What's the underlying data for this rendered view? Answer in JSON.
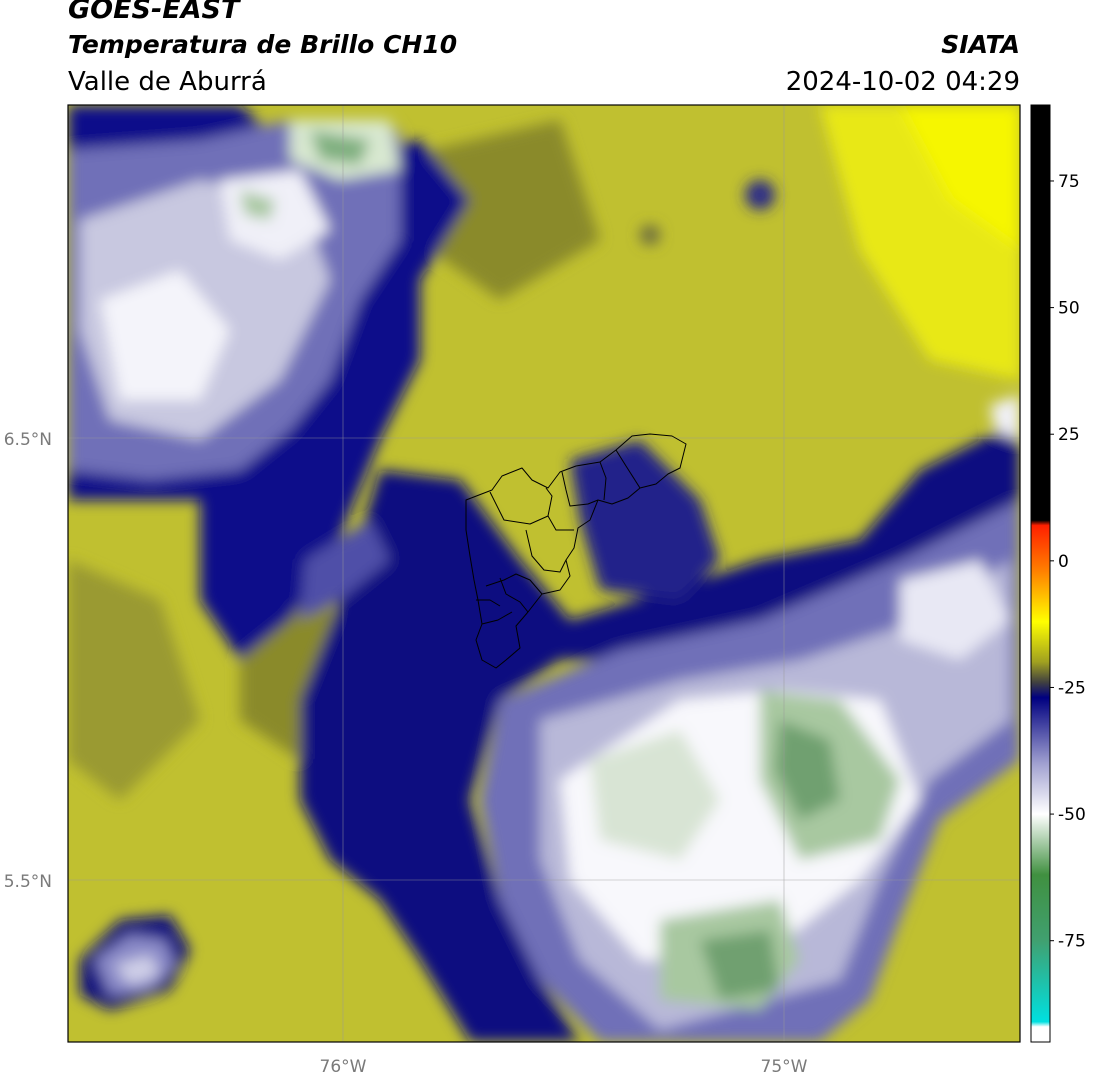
{
  "header": {
    "satellite": "GOES-EAST",
    "product": "Temperatura de Brillo CH10",
    "region": "Valle de Aburrá",
    "organization": "SIATA",
    "timestamp": "2024-10-02 04:29"
  },
  "map": {
    "lat_ticks": [
      {
        "label": "6.5°N",
        "value": 6.5
      },
      {
        "label": "5.5°N",
        "value": 5.5
      }
    ],
    "lon_ticks": [
      {
        "label": "76°W",
        "value": -76
      },
      {
        "label": "75°W",
        "value": -75
      }
    ],
    "colors": {
      "yellow_low": "#c0c030",
      "yellow_mid": "#d0d020",
      "yellow_bright": "#f0f000",
      "olive": "#7a7a2a",
      "navy": "#0a0a80",
      "purple": "#5a5aa8",
      "lavender": "#b8b8d8",
      "white": "#ffffff",
      "green_light": "#a8c8a0",
      "green_dark": "#609060",
      "border": "#000000"
    }
  },
  "colorbar": {
    "ticks": [
      {
        "label": "75",
        "value": 75
      },
      {
        "label": "50",
        "value": 50
      },
      {
        "label": "25",
        "value": 25
      },
      {
        "label": "0",
        "value": 0
      },
      {
        "label": "-25",
        "value": -25
      },
      {
        "label": "-50",
        "value": -50
      },
      {
        "label": "-75",
        "value": -75
      }
    ],
    "range": [
      -95,
      90
    ],
    "stops": [
      {
        "value": 90,
        "color": "#000000"
      },
      {
        "value": 8,
        "color": "#000000"
      },
      {
        "value": 7,
        "color": "#ff2000"
      },
      {
        "value": -2,
        "color": "#ff8000"
      },
      {
        "value": -12,
        "color": "#ffff00"
      },
      {
        "value": -20,
        "color": "#a0a020"
      },
      {
        "value": -24,
        "color": "#404040"
      },
      {
        "value": -27,
        "color": "#000080"
      },
      {
        "value": -40,
        "color": "#a0a0d0"
      },
      {
        "value": -50,
        "color": "#ffffff"
      },
      {
        "value": -62,
        "color": "#409040"
      },
      {
        "value": -75,
        "color": "#40a070"
      },
      {
        "value": -91,
        "color": "#00e0e0"
      },
      {
        "value": -92,
        "color": "#ffffff"
      },
      {
        "value": -95,
        "color": "#ffffff"
      }
    ]
  }
}
